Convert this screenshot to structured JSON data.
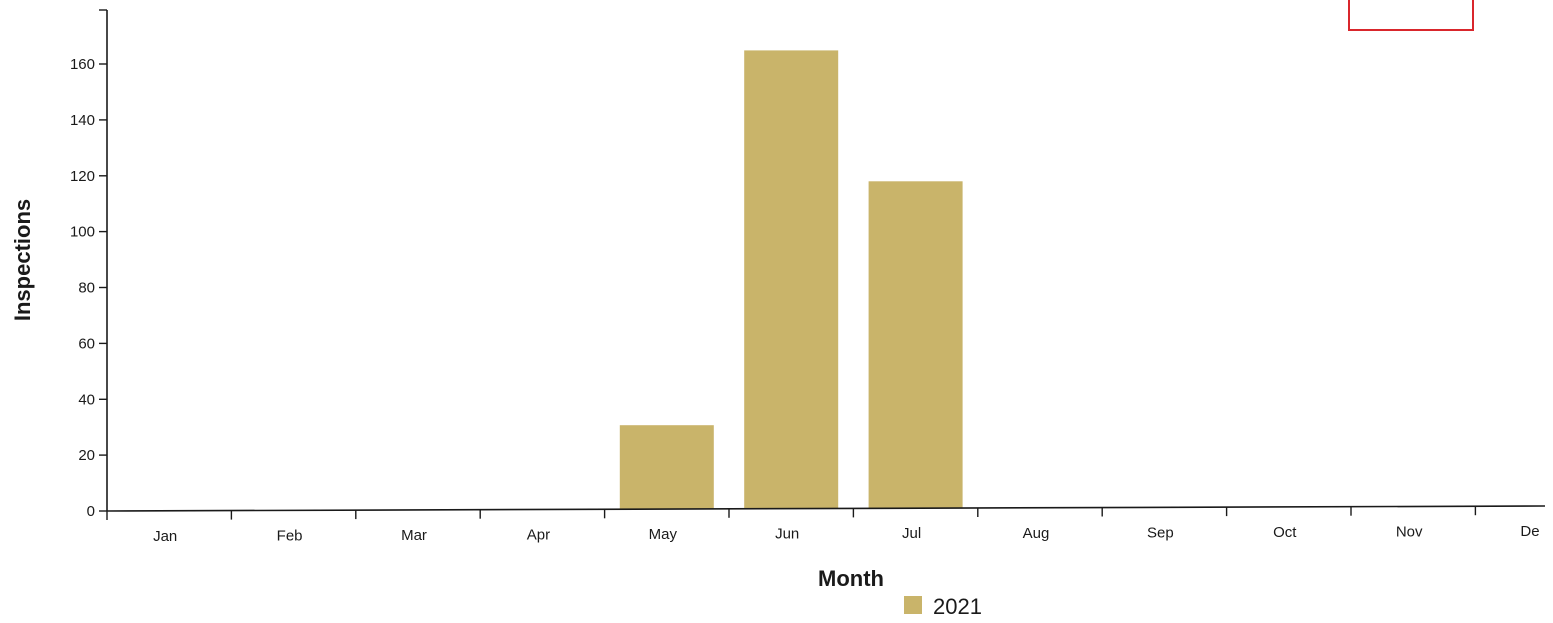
{
  "chart_data": {
    "type": "bar",
    "xlabel": "Month",
    "ylabel": "Inspections",
    "ylim": [
      0,
      185
    ],
    "yticks": [
      0,
      20,
      40,
      60,
      80,
      100,
      120,
      140,
      160
    ],
    "categories": [
      "Jan",
      "Feb",
      "Mar",
      "Apr",
      "May",
      "Jun",
      "Jul",
      "Aug",
      "Sep",
      "Oct",
      "Nov",
      "De"
    ],
    "series": [
      {
        "name": "2021",
        "values": [
          0,
          0,
          0,
          0,
          30,
          164,
          117,
          0,
          0,
          0,
          0,
          0
        ],
        "color": "#c9b46a"
      }
    ],
    "legend_placement": "bottom-center",
    "grid": false
  },
  "overlay": {
    "red_box_color": "#d9262c"
  }
}
